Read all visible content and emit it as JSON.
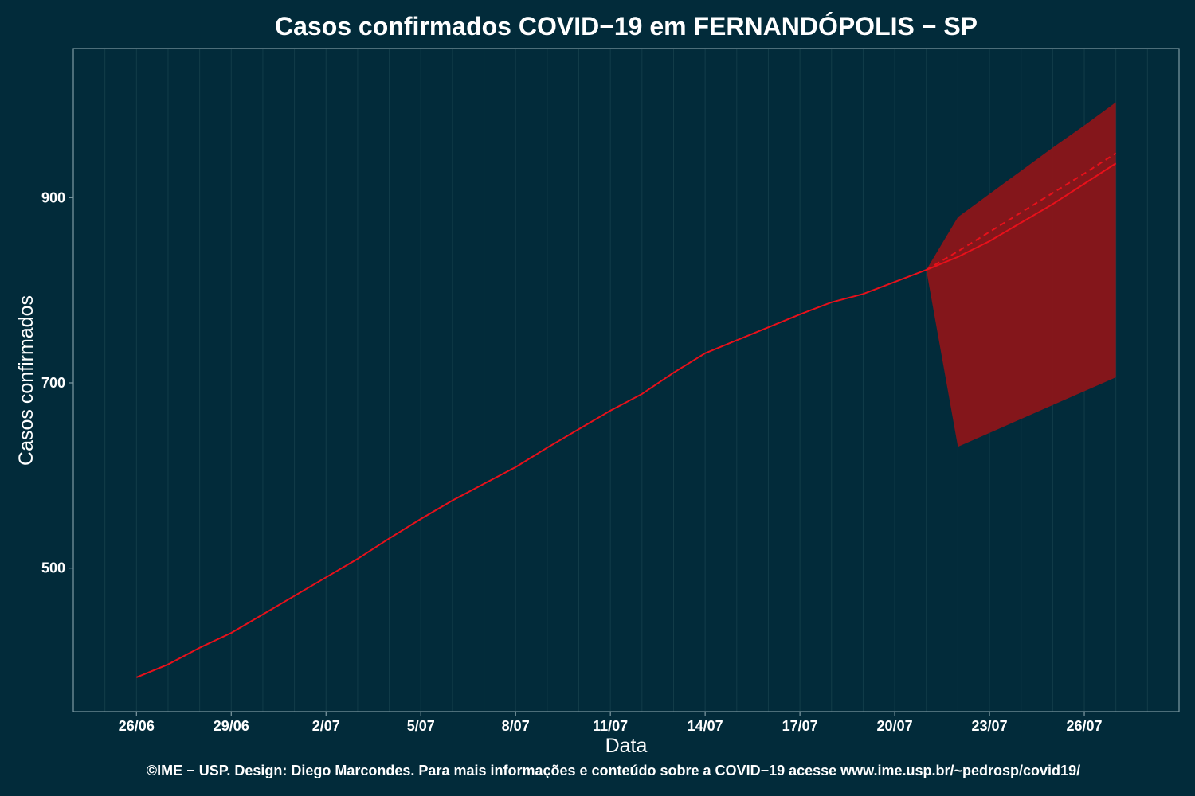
{
  "chart_data": {
    "type": "line",
    "title": "Casos confirmados COVID−19 em FERNANDÓPOLIS − SP",
    "xlabel": "Data",
    "ylabel": "Casos confirmados",
    "caption": "©IME − USP. Design: Diego Marcondes. Para mais informações e conteúdo sobre a COVID−19 acesse www.ime.usp.br/~pedrosp/covid19/",
    "x_tick_labels": [
      "26/06",
      "29/06",
      "2/07",
      "5/07",
      "8/07",
      "11/07",
      "14/07",
      "17/07",
      "20/07",
      "23/07",
      "26/07"
    ],
    "y_ticks": [
      500,
      700,
      900
    ],
    "xlim": [
      "2020-06-24",
      "2020-07-29"
    ],
    "ylim": [
      345,
      1061
    ],
    "grid": true,
    "colors": {
      "background": "#022b3a",
      "line": "#e8101a",
      "band": "#8b1519",
      "grid": "#1a4450",
      "axis": "#7f9aa3"
    },
    "series": [
      {
        "style": "solid",
        "x": [
          "2020-06-26",
          "2020-06-27",
          "2020-06-28",
          "2020-06-29",
          "2020-06-30",
          "2020-07-01",
          "2020-07-02",
          "2020-07-03",
          "2020-07-04",
          "2020-07-05",
          "2020-07-06",
          "2020-07-07",
          "2020-07-08",
          "2020-07-09",
          "2020-07-10",
          "2020-07-11",
          "2020-07-12",
          "2020-07-13",
          "2020-07-14",
          "2020-07-15",
          "2020-07-16",
          "2020-07-17",
          "2020-07-18",
          "2020-07-19",
          "2020-07-20",
          "2020-07-21",
          "2020-07-22",
          "2020-07-23",
          "2020-07-24",
          "2020-07-25",
          "2020-07-26",
          "2020-07-27"
        ],
        "values": [
          382,
          396,
          414,
          430,
          450,
          470,
          490,
          510,
          532,
          553,
          573,
          591,
          609,
          630,
          650,
          670,
          688,
          711,
          732,
          746,
          760,
          774,
          787,
          796,
          809,
          822,
          836,
          853,
          873,
          893,
          915,
          937
        ]
      },
      {
        "style": "dashed",
        "x": [
          "2020-07-21",
          "2020-07-22",
          "2020-07-23",
          "2020-07-24",
          "2020-07-25",
          "2020-07-26",
          "2020-07-27"
        ],
        "values": [
          822,
          842,
          863,
          884,
          905,
          926,
          948
        ]
      }
    ],
    "band": {
      "x": [
        "2020-07-21",
        "2020-07-22",
        "2020-07-23",
        "2020-07-24",
        "2020-07-25",
        "2020-07-26",
        "2020-07-27"
      ],
      "lower": [
        822,
        631,
        646,
        661,
        676,
        691,
        706
      ],
      "upper": [
        822,
        879,
        904,
        929,
        954,
        978,
        1003
      ]
    }
  }
}
